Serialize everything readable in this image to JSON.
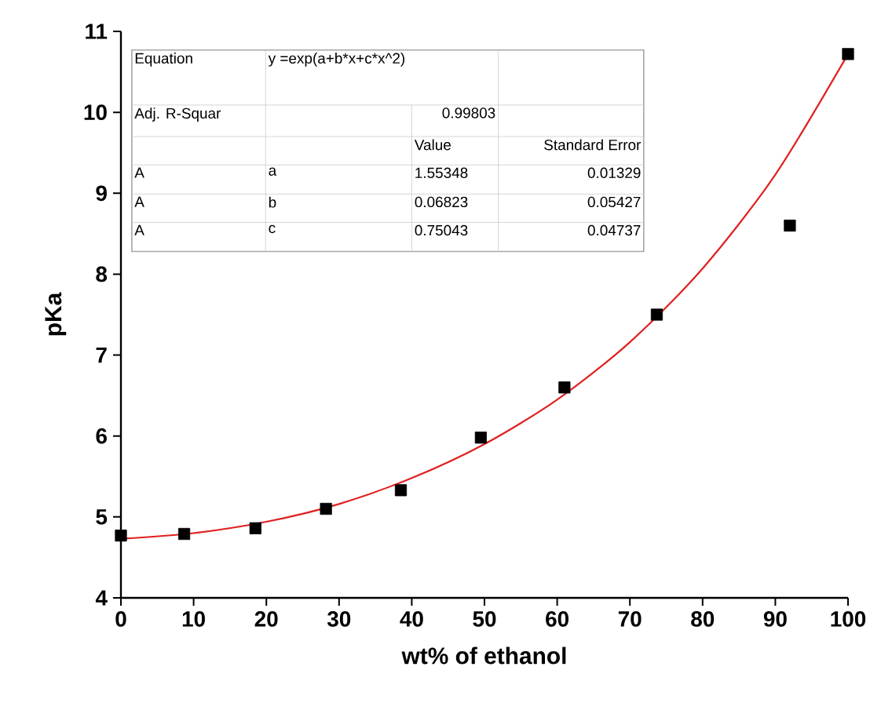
{
  "chart_data": {
    "type": "scatter",
    "xlabel": "wt% of ethanol",
    "ylabel": "pKa",
    "xlim": [
      0,
      100
    ],
    "ylim": [
      4,
      11
    ],
    "xticks": [
      0,
      10,
      20,
      30,
      40,
      50,
      60,
      70,
      80,
      90,
      100
    ],
    "yticks": [
      4,
      5,
      6,
      7,
      8,
      9,
      10,
      11
    ],
    "marker": "square",
    "series": [
      {
        "color": "#000000",
        "x": [
          0,
          8.7,
          18.5,
          28.2,
          38.5,
          49.5,
          61.0,
          73.7,
          92.0,
          100
        ],
        "values": [
          4.77,
          4.79,
          4.86,
          5.1,
          5.33,
          5.98,
          6.6,
          7.5,
          8.6,
          10.72
        ]
      },
      {
        "type": "line",
        "marker": "none",
        "color": "#e02020",
        "x": [
          0,
          10,
          20,
          30,
          40,
          50,
          60,
          70,
          80,
          90,
          100
        ],
        "values": [
          4.73,
          4.8,
          4.94,
          5.16,
          5.48,
          5.9,
          6.45,
          7.16,
          8.07,
          9.23,
          10.72
        ]
      }
    ],
    "annotations": [
      "Equation",
      "y =exp(a+b*x+c*x^2)",
      "Adj. R-Squar",
      "0.99803",
      "Value",
      "Standard Error",
      "A",
      "a",
      "1.55348",
      "0.01329",
      "A",
      "b",
      "0.06823",
      "0.05427",
      "A",
      "c",
      "0.75043",
      "0.04737"
    ]
  }
}
